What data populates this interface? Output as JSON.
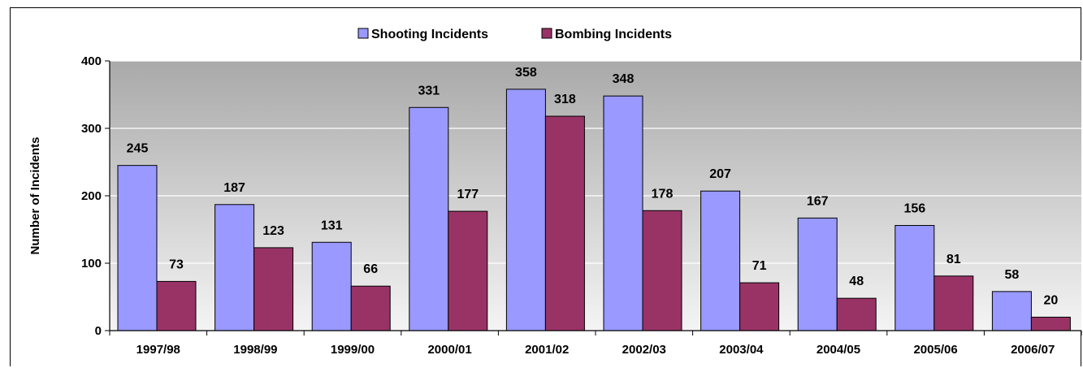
{
  "chart_data": {
    "type": "bar",
    "categories": [
      "1997/98",
      "1998/99",
      "1999/00",
      "2000/01",
      "2001/02",
      "2002/03",
      "2003/04",
      "2004/05",
      "2005/06",
      "2006/07"
    ],
    "series": [
      {
        "name": "Shooting Incidents",
        "values": [
          245,
          187,
          131,
          331,
          358,
          348,
          207,
          167,
          156,
          58
        ],
        "color": "#9999ff"
      },
      {
        "name": "Bombing Incidents",
        "values": [
          73,
          123,
          66,
          177,
          318,
          178,
          71,
          48,
          81,
          20
        ],
        "color": "#993366"
      }
    ],
    "xlabel": "",
    "ylabel": "Number of Incidents",
    "ylim": [
      0,
      400
    ],
    "yticks": [
      0,
      100,
      200,
      300,
      400
    ],
    "grid": true,
    "legend_position": "top-center",
    "data_labels": true,
    "plot_background": "gradient gray"
  }
}
